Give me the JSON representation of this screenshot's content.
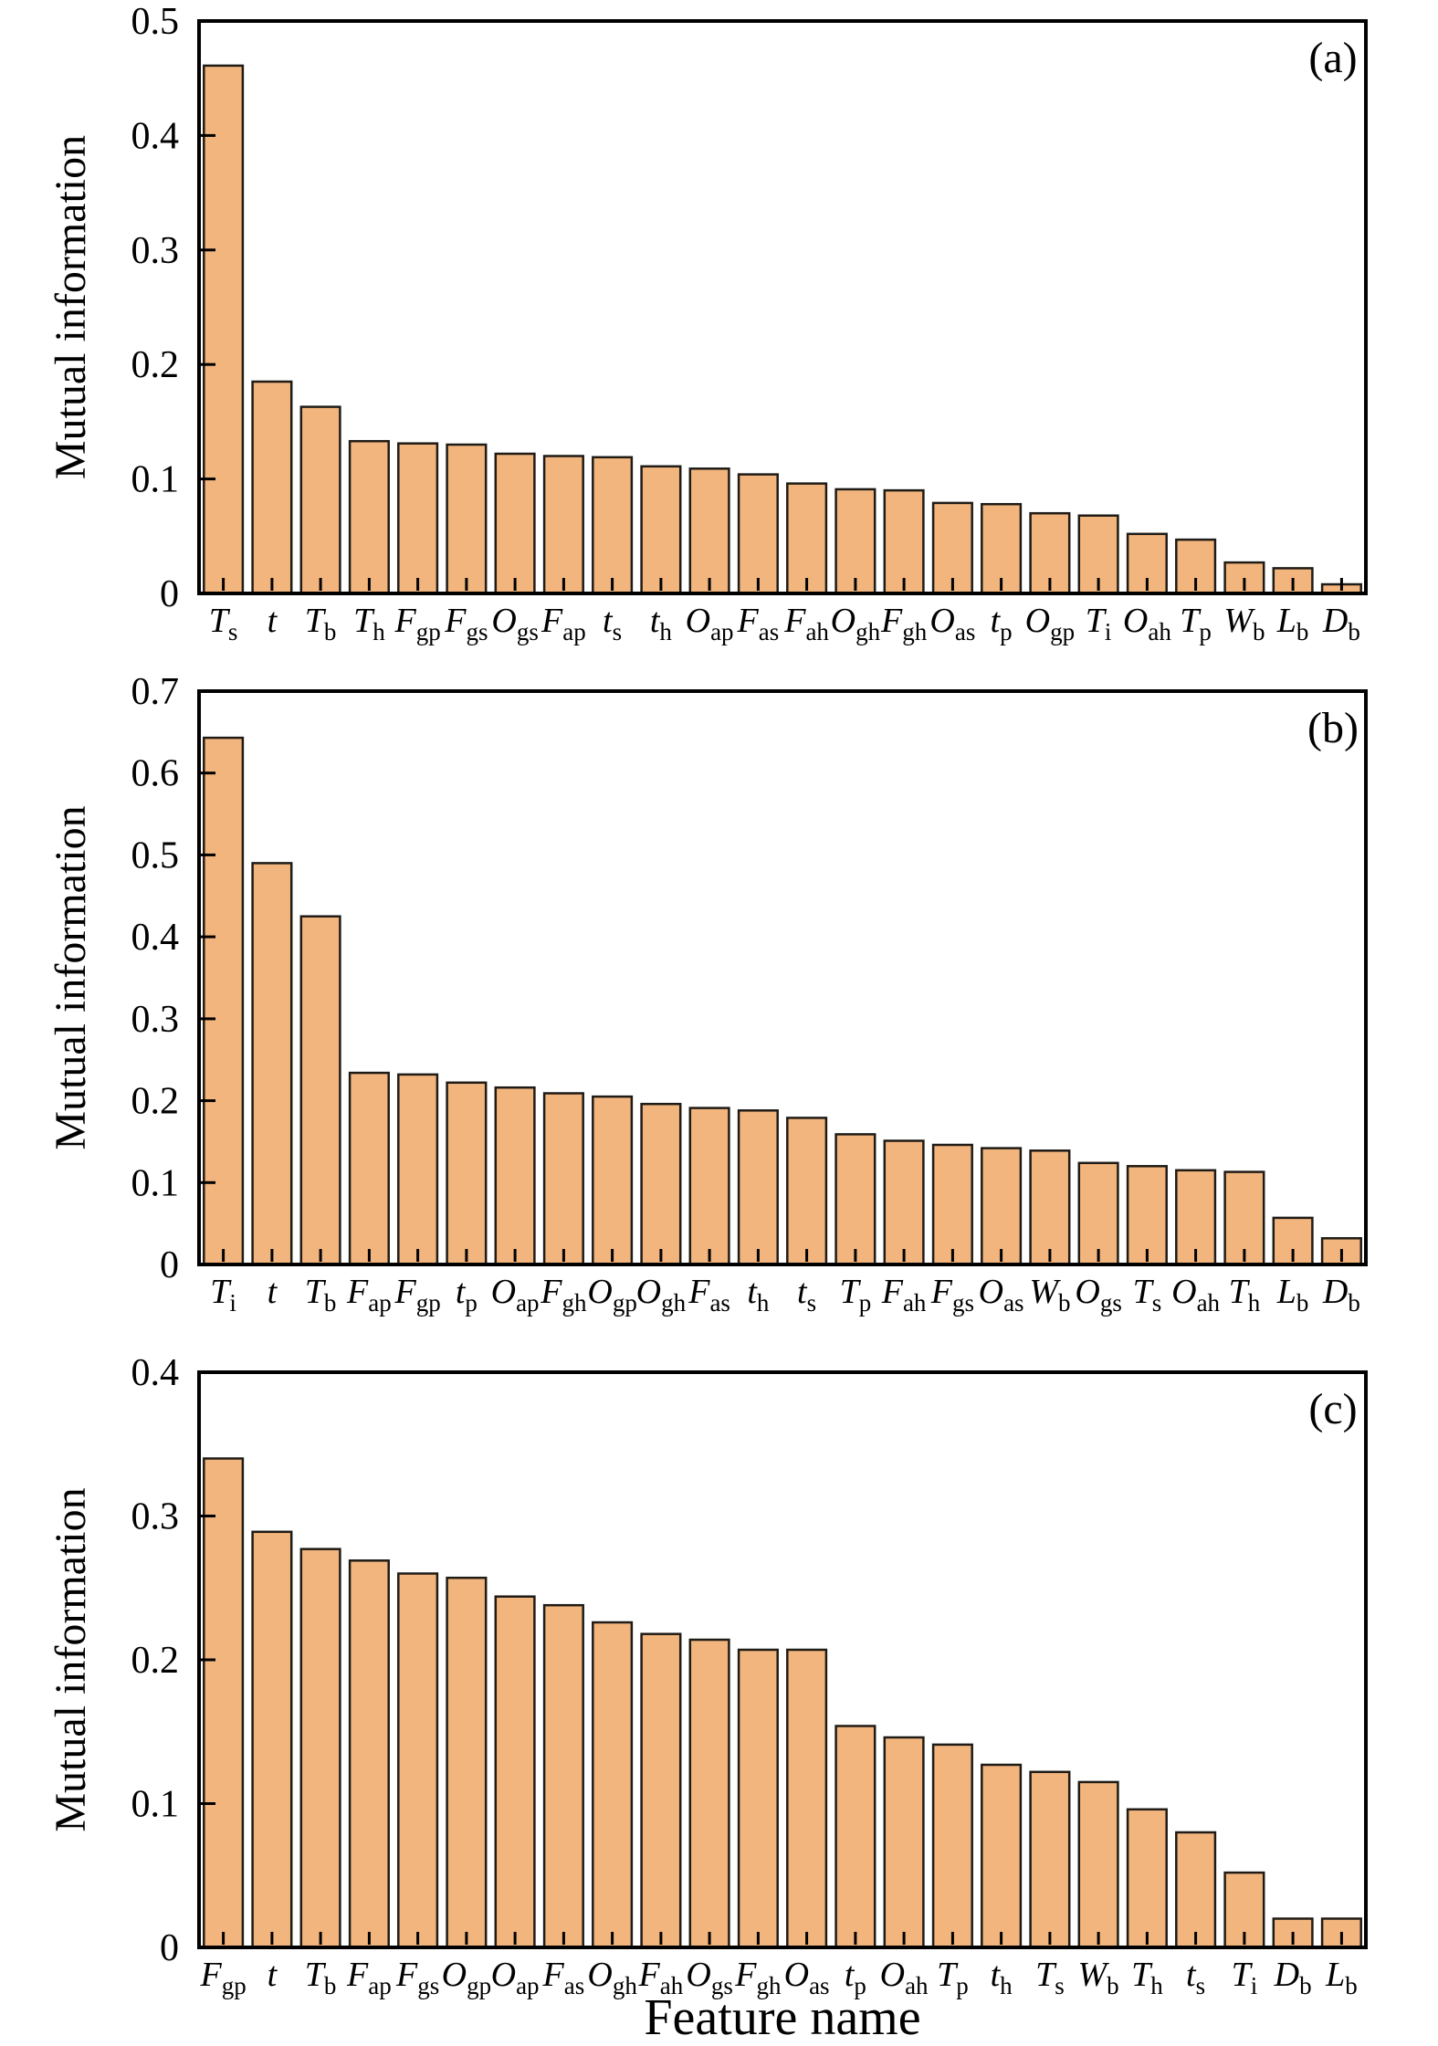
{
  "figure": {
    "xlabel": "Feature name",
    "background": "#FFFFFF",
    "bar_fill": "#F2B57E",
    "bar_edge": "#1F1B16",
    "axis_color": "#000000"
  },
  "chart_data": [
    {
      "type": "bar",
      "panel_label": "(a)",
      "title": "",
      "ylabel": "Mutual information",
      "xlabel": "",
      "ylim": [
        0,
        0.5
      ],
      "ytick_step": 0.1,
      "grid": false,
      "legend": "none",
      "categories": [
        "T_s",
        "t",
        "T_b",
        "T_h",
        "F_gp",
        "F_gs",
        "O_gs",
        "F_ap",
        "t_s",
        "t_h",
        "O_ap",
        "F_as",
        "F_ah",
        "O_gh",
        "F_gh",
        "O_as",
        "t_p",
        "O_gp",
        "T_i",
        "O_ah",
        "T_p",
        "W_b",
        "L_b",
        "D_b"
      ],
      "values": [
        0.461,
        0.185,
        0.163,
        0.133,
        0.131,
        0.13,
        0.122,
        0.12,
        0.119,
        0.111,
        0.109,
        0.104,
        0.096,
        0.091,
        0.09,
        0.079,
        0.078,
        0.07,
        0.068,
        0.052,
        0.047,
        0.027,
        0.022,
        0.008
      ]
    },
    {
      "type": "bar",
      "panel_label": "(b)",
      "title": "",
      "ylabel": "Mutual information",
      "xlabel": "",
      "ylim": [
        0,
        0.7
      ],
      "ytick_step": 0.1,
      "grid": false,
      "legend": "none",
      "categories": [
        "T_i",
        "t",
        "T_b",
        "F_ap",
        "F_gp",
        "t_p",
        "O_ap",
        "F_gh",
        "O_gp",
        "O_gh",
        "F_as",
        "t_h",
        "t_s",
        "T_p",
        "F_ah",
        "F_gs",
        "O_as",
        "W_b",
        "O_gs",
        "T_s",
        "O_ah",
        "T_h",
        "L_b",
        "D_b"
      ],
      "values": [
        0.643,
        0.49,
        0.425,
        0.234,
        0.232,
        0.222,
        0.216,
        0.209,
        0.205,
        0.196,
        0.191,
        0.188,
        0.179,
        0.159,
        0.151,
        0.146,
        0.142,
        0.139,
        0.124,
        0.12,
        0.115,
        0.113,
        0.057,
        0.032
      ]
    },
    {
      "type": "bar",
      "panel_label": "(c)",
      "title": "",
      "ylabel": "Mutual information",
      "xlabel": "Feature name",
      "ylim": [
        0,
        0.4
      ],
      "ytick_step": 0.1,
      "grid": false,
      "legend": "none",
      "categories": [
        "F_gp",
        "t",
        "T_b",
        "F_ap",
        "F_gs",
        "O_gp",
        "O_ap",
        "F_as",
        "O_gh",
        "F_ah",
        "O_gs",
        "F_gh",
        "O_as",
        "t_p",
        "O_ah",
        "T_p",
        "t_h",
        "T_s",
        "W_b",
        "T_h",
        "t_s",
        "T_i",
        "D_b",
        "L_b"
      ],
      "values": [
        0.34,
        0.289,
        0.277,
        0.269,
        0.26,
        0.257,
        0.244,
        0.238,
        0.226,
        0.218,
        0.214,
        0.207,
        0.207,
        0.154,
        0.146,
        0.141,
        0.127,
        0.122,
        0.115,
        0.096,
        0.08,
        0.052,
        0.02,
        0.02
      ]
    }
  ]
}
